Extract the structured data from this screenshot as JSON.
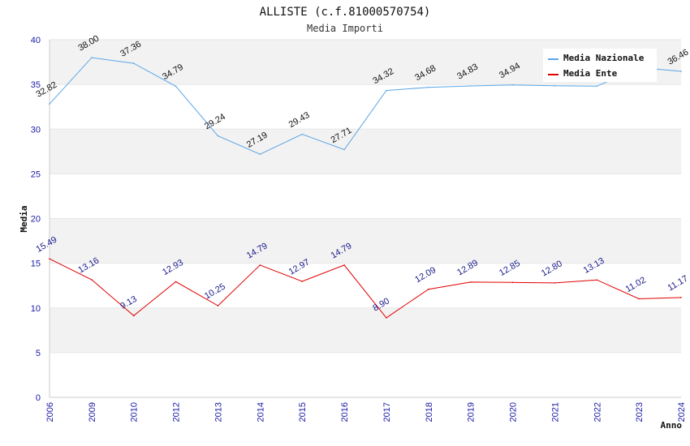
{
  "chart_data": {
    "type": "line",
    "title": "ALLISTE (c.f.81000570754)",
    "subtitle": "Media Importi",
    "xlabel": "Anno",
    "ylabel": "Media",
    "ylim": [
      0,
      40
    ],
    "yticks": [
      0,
      5,
      10,
      15,
      20,
      25,
      30,
      35,
      40
    ],
    "grid": true,
    "legend_position": "top-right",
    "categories": [
      "2006",
      "2009",
      "2010",
      "2012",
      "2013",
      "2014",
      "2015",
      "2016",
      "2017",
      "2018",
      "2019",
      "2020",
      "2021",
      "2022",
      "2023",
      "2024"
    ],
    "series": [
      {
        "name": "Media Nazionale",
        "color": "#5aa5e6",
        "values": [
          32.82,
          38.0,
          37.36,
          34.79,
          29.24,
          27.19,
          29.43,
          27.71,
          34.32,
          34.68,
          34.83,
          34.94,
          34.85,
          34.8,
          36.9,
          36.46
        ],
        "labels": [
          "32.82",
          "38.00",
          "37.36",
          "34.79",
          "29.24",
          "27.19",
          "29.43",
          "27.71",
          "34.32",
          "34.68",
          "34.83",
          "34.94",
          "",
          "",
          "",
          "36.46"
        ]
      },
      {
        "name": "Media Ente",
        "color": "#e00000",
        "values": [
          15.49,
          13.16,
          9.13,
          12.93,
          10.25,
          14.79,
          12.97,
          14.79,
          8.9,
          12.09,
          12.89,
          12.85,
          12.8,
          13.13,
          11.02,
          11.17
        ],
        "labels": [
          "15.49",
          "13.16",
          "9.13",
          "12.93",
          "10.25",
          "14.79",
          "12.97",
          "14.79",
          "8.90",
          "12.09",
          "12.89",
          "12.85",
          "12.80",
          "13.13",
          "11.02",
          "11.17"
        ]
      }
    ]
  }
}
